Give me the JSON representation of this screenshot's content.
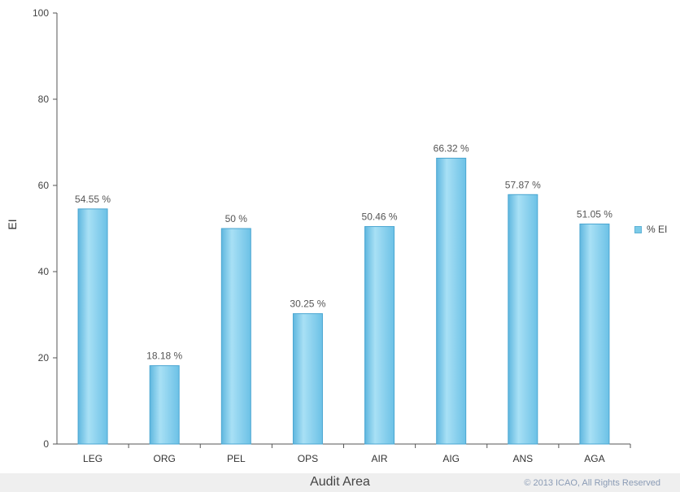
{
  "chart_data": {
    "type": "bar",
    "title": "",
    "xlabel": "Audit Area",
    "ylabel": "EI",
    "ylim": [
      0,
      100
    ],
    "yticks": [
      0,
      20,
      40,
      60,
      80,
      100
    ],
    "categories": [
      "LEG",
      "ORG",
      "PEL",
      "OPS",
      "AIR",
      "AIG",
      "ANS",
      "AGA"
    ],
    "series": [
      {
        "name": "% EI",
        "values": [
          54.55,
          18.18,
          50,
          30.25,
          50.46,
          66.32,
          57.87,
          51.05
        ],
        "labels": [
          "54.55 %",
          "18.18 %",
          "50 %",
          "30.25 %",
          "50.46 %",
          "66.32 %",
          "57.87 %",
          "51.05 %"
        ]
      }
    ],
    "legend_position": "right",
    "grid": false,
    "bar_color": "#7ccbe8",
    "copyright": "© 2013 ICAO, All Rights Reserved"
  }
}
